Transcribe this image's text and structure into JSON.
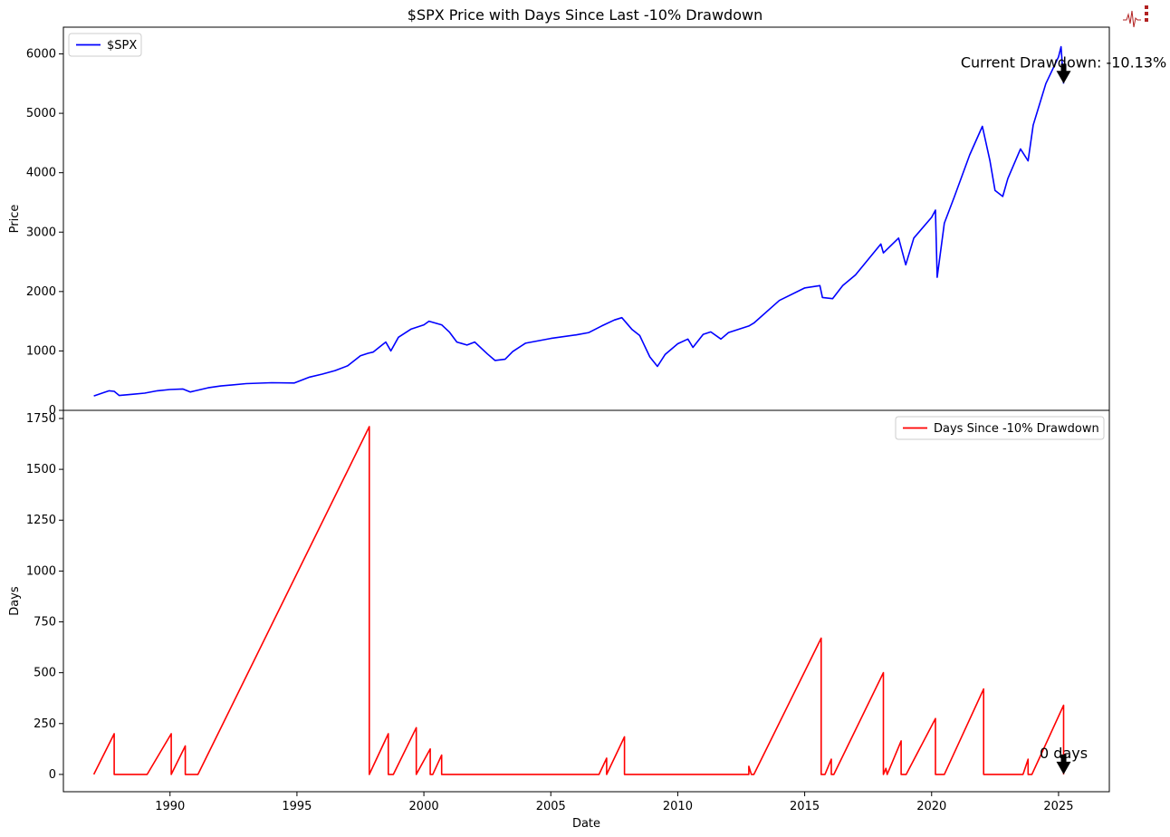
{
  "chart_data": [
    {
      "type": "line",
      "title": "$SPX Price with Days Since Last -10% Drawdown",
      "xlabel": "",
      "ylabel": "Price",
      "ylim": [
        0,
        6450
      ],
      "yticks": [
        0,
        1000,
        2000,
        3000,
        4000,
        5000,
        6000
      ],
      "legend_position": "upper-left",
      "series": [
        {
          "name": "$SPX",
          "color": "#0000ff",
          "x": [
            1987.0,
            1987.4,
            1987.6,
            1987.8,
            1988.0,
            1988.5,
            1989.0,
            1989.5,
            1990.0,
            1990.5,
            1990.8,
            1991.0,
            1991.5,
            1992.0,
            1993.0,
            1994.0,
            1994.9,
            1995.5,
            1996.0,
            1996.5,
            1997.0,
            1997.5,
            1997.8,
            1998.0,
            1998.5,
            1998.7,
            1999.0,
            1999.5,
            2000.0,
            2000.2,
            2000.7,
            2001.0,
            2001.3,
            2001.7,
            2002.0,
            2002.5,
            2002.8,
            2003.2,
            2003.5,
            2004.0,
            2005.0,
            2006.0,
            2006.5,
            2007.0,
            2007.5,
            2007.8,
            2008.2,
            2008.5,
            2008.9,
            2009.2,
            2009.5,
            2010.0,
            2010.4,
            2010.6,
            2011.0,
            2011.3,
            2011.7,
            2012.0,
            2012.8,
            2013.0,
            2014.0,
            2015.0,
            2015.6,
            2015.7,
            2016.1,
            2016.5,
            2017.0,
            2018.0,
            2018.1,
            2018.7,
            2018.98,
            2019.3,
            2020.0,
            2020.15,
            2020.22,
            2020.5,
            2020.9,
            2021.5,
            2022.0,
            2022.3,
            2022.5,
            2022.8,
            2023.0,
            2023.5,
            2023.8,
            2024.0,
            2024.5,
            2025.0,
            2025.1,
            2025.2
          ],
          "values": [
            242,
            300,
            330,
            320,
            250,
            270,
            290,
            330,
            350,
            360,
            310,
            330,
            380,
            410,
            450,
            465,
            460,
            560,
            610,
            670,
            750,
            920,
            960,
            980,
            1150,
            1000,
            1230,
            1370,
            1440,
            1500,
            1440,
            1320,
            1150,
            1100,
            1150,
            950,
            840,
            860,
            990,
            1130,
            1210,
            1270,
            1310,
            1420,
            1520,
            1560,
            1360,
            1260,
            900,
            740,
            940,
            1120,
            1200,
            1060,
            1280,
            1320,
            1200,
            1310,
            1420,
            1470,
            1850,
            2060,
            2100,
            1900,
            1880,
            2100,
            2280,
            2800,
            2650,
            2900,
            2450,
            2900,
            3250,
            3370,
            2240,
            3150,
            3600,
            4300,
            4780,
            4200,
            3700,
            3600,
            3900,
            4400,
            4200,
            4800,
            5500,
            5950,
            6120,
            5500
          ]
        }
      ],
      "annotation": {
        "text": "Current Drawdown: -10.13%",
        "x": 2025.2,
        "y": 5500
      }
    },
    {
      "type": "line",
      "xlabel": "Date",
      "ylabel": "Days",
      "xlim": [
        1985.8,
        2027.0
      ],
      "ylim": [
        -85,
        1790
      ],
      "xticks": [
        1990,
        1995,
        2000,
        2005,
        2010,
        2015,
        2020,
        2025
      ],
      "yticks": [
        0,
        250,
        500,
        750,
        1000,
        1250,
        1500,
        1750
      ],
      "legend_position": "upper-right",
      "series": [
        {
          "name": "Days Since -10% Drawdown",
          "color": "#ff0000",
          "x": [
            1987.0,
            1987.8,
            1987.8,
            1989.1,
            1990.05,
            1990.05,
            1990.6,
            1990.6,
            1991.1,
            1997.85,
            1997.85,
            1998.6,
            1998.6,
            1998.8,
            1999.7,
            1999.7,
            2000.25,
            2000.25,
            2000.35,
            2000.7,
            2000.7,
            2000.95,
            2006.9,
            2007.2,
            2007.2,
            2007.9,
            2007.9,
            2008.0,
            2012.8,
            2012.8,
            2012.9,
            2013.0,
            2015.65,
            2015.65,
            2015.8,
            2016.05,
            2016.05,
            2016.15,
            2018.1,
            2018.1,
            2018.2,
            2018.25,
            2018.8,
            2018.8,
            2018.95,
            2019.0,
            2020.15,
            2020.15,
            2020.5,
            2022.05,
            2022.05,
            2022.2,
            2023.6,
            2023.8,
            2023.8,
            2023.95,
            2025.2,
            2025.2
          ],
          "values": [
            0,
            200,
            0,
            0,
            200,
            0,
            140,
            0,
            0,
            1710,
            0,
            200,
            0,
            0,
            230,
            0,
            125,
            0,
            0,
            95,
            0,
            0,
            0,
            80,
            0,
            185,
            0,
            0,
            0,
            40,
            0,
            0,
            670,
            0,
            0,
            75,
            0,
            0,
            500,
            0,
            30,
            0,
            165,
            0,
            0,
            0,
            275,
            0,
            0,
            420,
            0,
            0,
            0,
            75,
            0,
            0,
            340,
            0
          ]
        }
      ],
      "annotation": {
        "text": "0 days",
        "x": 2025.2,
        "y": 0
      }
    }
  ]
}
